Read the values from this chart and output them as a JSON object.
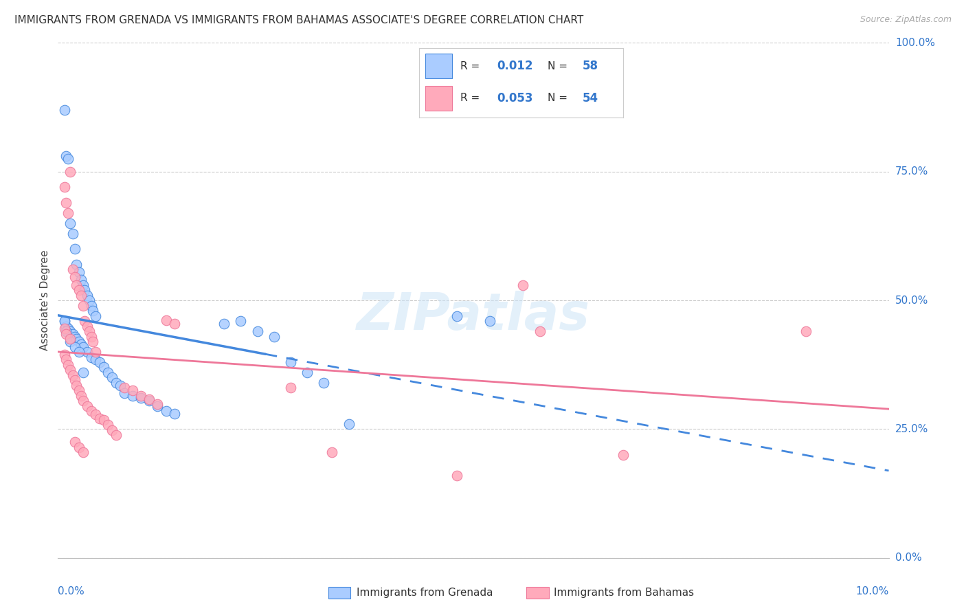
{
  "title": "IMMIGRANTS FROM GRENADA VS IMMIGRANTS FROM BAHAMAS ASSOCIATE'S DEGREE CORRELATION CHART",
  "source": "Source: ZipAtlas.com",
  "ylabel": "Associate's Degree",
  "legend_label1": "Immigrants from Grenada",
  "legend_label2": "Immigrants from Bahamas",
  "color_grenada": "#aaccff",
  "color_bahamas": "#ffaabb",
  "color_grenada_line": "#4488dd",
  "color_bahamas_line": "#ee7799",
  "color_blue_text": "#3377cc",
  "background": "#ffffff",
  "xlim": [
    0.0,
    0.1
  ],
  "ylim": [
    0.0,
    1.0
  ],
  "ytick_vals": [
    0.0,
    0.25,
    0.5,
    0.75,
    1.0
  ],
  "ytick_labels": [
    "0.0%",
    "25.0%",
    "50.0%",
    "75.0%",
    "100.0%"
  ],
  "xtick_left": "0.0%",
  "xtick_right": "10.0%",
  "R1": "0.012",
  "N1": "58",
  "R2": "0.053",
  "N2": "54",
  "grenada_x": [
    0.0008,
    0.001,
    0.0012,
    0.0015,
    0.0018,
    0.002,
    0.0022,
    0.0025,
    0.0028,
    0.003,
    0.0032,
    0.0035,
    0.0038,
    0.004,
    0.0042,
    0.0045,
    0.0008,
    0.001,
    0.0012,
    0.0015,
    0.0018,
    0.002,
    0.0022,
    0.0025,
    0.0028,
    0.003,
    0.0035,
    0.004,
    0.0045,
    0.005,
    0.0055,
    0.006,
    0.0065,
    0.007,
    0.0075,
    0.008,
    0.009,
    0.01,
    0.011,
    0.012,
    0.013,
    0.014,
    0.0008,
    0.001,
    0.0015,
    0.002,
    0.0025,
    0.003,
    0.02,
    0.022,
    0.024,
    0.026,
    0.028,
    0.03,
    0.032,
    0.035,
    0.048,
    0.052
  ],
  "grenada_y": [
    0.87,
    0.78,
    0.775,
    0.65,
    0.63,
    0.6,
    0.57,
    0.555,
    0.54,
    0.53,
    0.52,
    0.51,
    0.5,
    0.49,
    0.48,
    0.47,
    0.46,
    0.45,
    0.445,
    0.44,
    0.435,
    0.43,
    0.425,
    0.42,
    0.415,
    0.41,
    0.4,
    0.39,
    0.385,
    0.38,
    0.37,
    0.36,
    0.35,
    0.34,
    0.335,
    0.32,
    0.315,
    0.31,
    0.305,
    0.295,
    0.285,
    0.28,
    0.46,
    0.44,
    0.42,
    0.41,
    0.4,
    0.36,
    0.455,
    0.46,
    0.44,
    0.43,
    0.38,
    0.36,
    0.34,
    0.26,
    0.47,
    0.46
  ],
  "bahamas_x": [
    0.0008,
    0.001,
    0.0012,
    0.0015,
    0.0018,
    0.002,
    0.0022,
    0.0025,
    0.0028,
    0.003,
    0.0032,
    0.0035,
    0.0038,
    0.004,
    0.0042,
    0.0045,
    0.0008,
    0.001,
    0.0012,
    0.0015,
    0.0018,
    0.002,
    0.0022,
    0.0025,
    0.0028,
    0.003,
    0.0035,
    0.004,
    0.0045,
    0.005,
    0.0055,
    0.006,
    0.0065,
    0.007,
    0.008,
    0.009,
    0.01,
    0.011,
    0.012,
    0.013,
    0.014,
    0.0008,
    0.001,
    0.0015,
    0.002,
    0.0025,
    0.003,
    0.028,
    0.033,
    0.048,
    0.056,
    0.058,
    0.068,
    0.09
  ],
  "bahamas_y": [
    0.72,
    0.69,
    0.67,
    0.75,
    0.56,
    0.545,
    0.53,
    0.52,
    0.51,
    0.49,
    0.46,
    0.45,
    0.44,
    0.43,
    0.42,
    0.4,
    0.395,
    0.385,
    0.375,
    0.365,
    0.355,
    0.345,
    0.335,
    0.325,
    0.315,
    0.305,
    0.295,
    0.285,
    0.278,
    0.27,
    0.268,
    0.258,
    0.248,
    0.238,
    0.33,
    0.325,
    0.315,
    0.308,
    0.298,
    0.462,
    0.455,
    0.445,
    0.435,
    0.425,
    0.225,
    0.215,
    0.205,
    0.33,
    0.205,
    0.16,
    0.53,
    0.44,
    0.2,
    0.44
  ]
}
